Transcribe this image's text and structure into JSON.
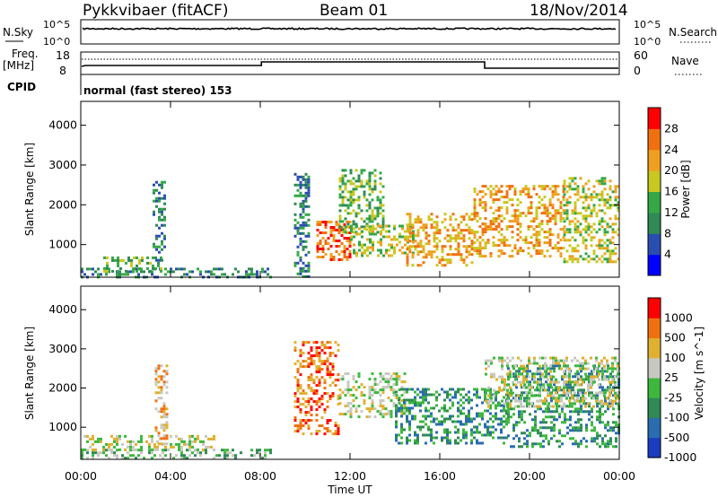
{
  "header": {
    "radar": "Pykkvibaer (fitACF)",
    "beam": "Beam 01",
    "date": "18/Nov/2014"
  },
  "nsky_panel": {
    "left_label": "N.Sky",
    "right_label": "N.Search",
    "left_ticks": [
      "10^5",
      "10^0"
    ],
    "right_ticks": [
      "10^5",
      "10^0"
    ]
  },
  "freq_panel": {
    "left_label_line1": "Freq.",
    "left_label_line2": "[MHz]",
    "left_ticks": [
      "18",
      "8"
    ],
    "right_label": "Nave",
    "right_ticks": [
      "60",
      "0"
    ],
    "cpid_label": "CPID",
    "cpid_text": "normal (fast stereo) 153"
  },
  "time_axis": {
    "title": "Time UT",
    "ticks": [
      "00:00",
      "04:00",
      "08:00",
      "12:00",
      "16:00",
      "20:00",
      "00:00"
    ]
  },
  "power_panel": {
    "ylabel": "Slant Range [km]",
    "yticks": [
      "4000",
      "3000",
      "2000",
      "1000"
    ],
    "colorbar_label": "Power [dB]",
    "colorbar_ticks": [
      "28",
      "24",
      "20",
      "16",
      "12",
      "8",
      "4"
    ],
    "colors": [
      "#0000ff",
      "#2a4eb0",
      "#2f8a55",
      "#35a846",
      "#c8c820",
      "#f0a020",
      "#f07010",
      "#ff0000"
    ]
  },
  "velocity_panel": {
    "ylabel": "Slant Range [km]",
    "yticks": [
      "4000",
      "3000",
      "2000",
      "1000"
    ],
    "colorbar_label": "Velocity [m s^-1]",
    "colorbar_ticks": [
      "1000",
      "500",
      "100",
      "25",
      "-25",
      "-100",
      "-500",
      "-1000"
    ],
    "colors": [
      "#1a3cc0",
      "#2a6cb0",
      "#2f8a55",
      "#3db83d",
      "#c8c8c0",
      "#e0b030",
      "#f07010",
      "#ff0000"
    ]
  },
  "chart_data": [
    {
      "type": "heatmap",
      "title": "",
      "xlabel": "Time UT",
      "ylabel": "Slant Range [km]",
      "x_range_hours": [
        0,
        24
      ],
      "ylim": [
        180,
        4600
      ],
      "colorbar": "Power [dB]",
      "colorbar_range": [
        0,
        32
      ],
      "regions": [
        {
          "t": [
            0,
            8.5
          ],
          "r": [
            200,
            420
          ],
          "level": 2
        },
        {
          "t": [
            1,
            3.6
          ],
          "r": [
            350,
            700
          ],
          "level": 3
        },
        {
          "t": [
            3.2,
            3.8
          ],
          "r": [
            600,
            2600
          ],
          "level": 2
        },
        {
          "t": [
            9.5,
            10.2
          ],
          "r": [
            200,
            2800
          ],
          "level": 2
        },
        {
          "t": [
            10.5,
            12.0
          ],
          "r": [
            600,
            1600
          ],
          "level": 6
        },
        {
          "t": [
            11.5,
            13.5
          ],
          "r": [
            1300,
            2900
          ],
          "level": 3
        },
        {
          "t": [
            12.0,
            14.8
          ],
          "r": [
            700,
            1500
          ],
          "level": 4
        },
        {
          "t": [
            14.5,
            17.5
          ],
          "r": [
            500,
            1800
          ],
          "level": 5
        },
        {
          "t": [
            17.5,
            21.5
          ],
          "r": [
            700,
            2500
          ],
          "level": 5
        },
        {
          "t": [
            21.5,
            24
          ],
          "r": [
            600,
            2700
          ],
          "level": 4
        }
      ]
    },
    {
      "type": "heatmap",
      "title": "",
      "xlabel": "Time UT",
      "ylabel": "Slant Range [km]",
      "x_range_hours": [
        0,
        24
      ],
      "ylim": [
        180,
        4600
      ],
      "colorbar": "Velocity [m s^-1]",
      "colorbar_range": [
        -1000,
        1000
      ],
      "regions": [
        {
          "t": [
            0,
            8.5
          ],
          "r": [
            200,
            450
          ],
          "level": 3
        },
        {
          "t": [
            0,
            6
          ],
          "r": [
            400,
            800
          ],
          "level": 4
        },
        {
          "t": [
            3.3,
            3.9
          ],
          "r": [
            600,
            2600
          ],
          "level": 5
        },
        {
          "t": [
            9.5,
            11.5
          ],
          "r": [
            800,
            3200
          ],
          "level": 6
        },
        {
          "t": [
            11.5,
            14.5
          ],
          "r": [
            1300,
            2400
          ],
          "level": 4
        },
        {
          "t": [
            14.0,
            19.0
          ],
          "r": [
            600,
            2000
          ],
          "level": 2
        },
        {
          "t": [
            19.0,
            24
          ],
          "r": [
            500,
            2600
          ],
          "level": 2
        },
        {
          "t": [
            18.0,
            24
          ],
          "r": [
            1500,
            2800
          ],
          "level": 4
        }
      ]
    }
  ]
}
